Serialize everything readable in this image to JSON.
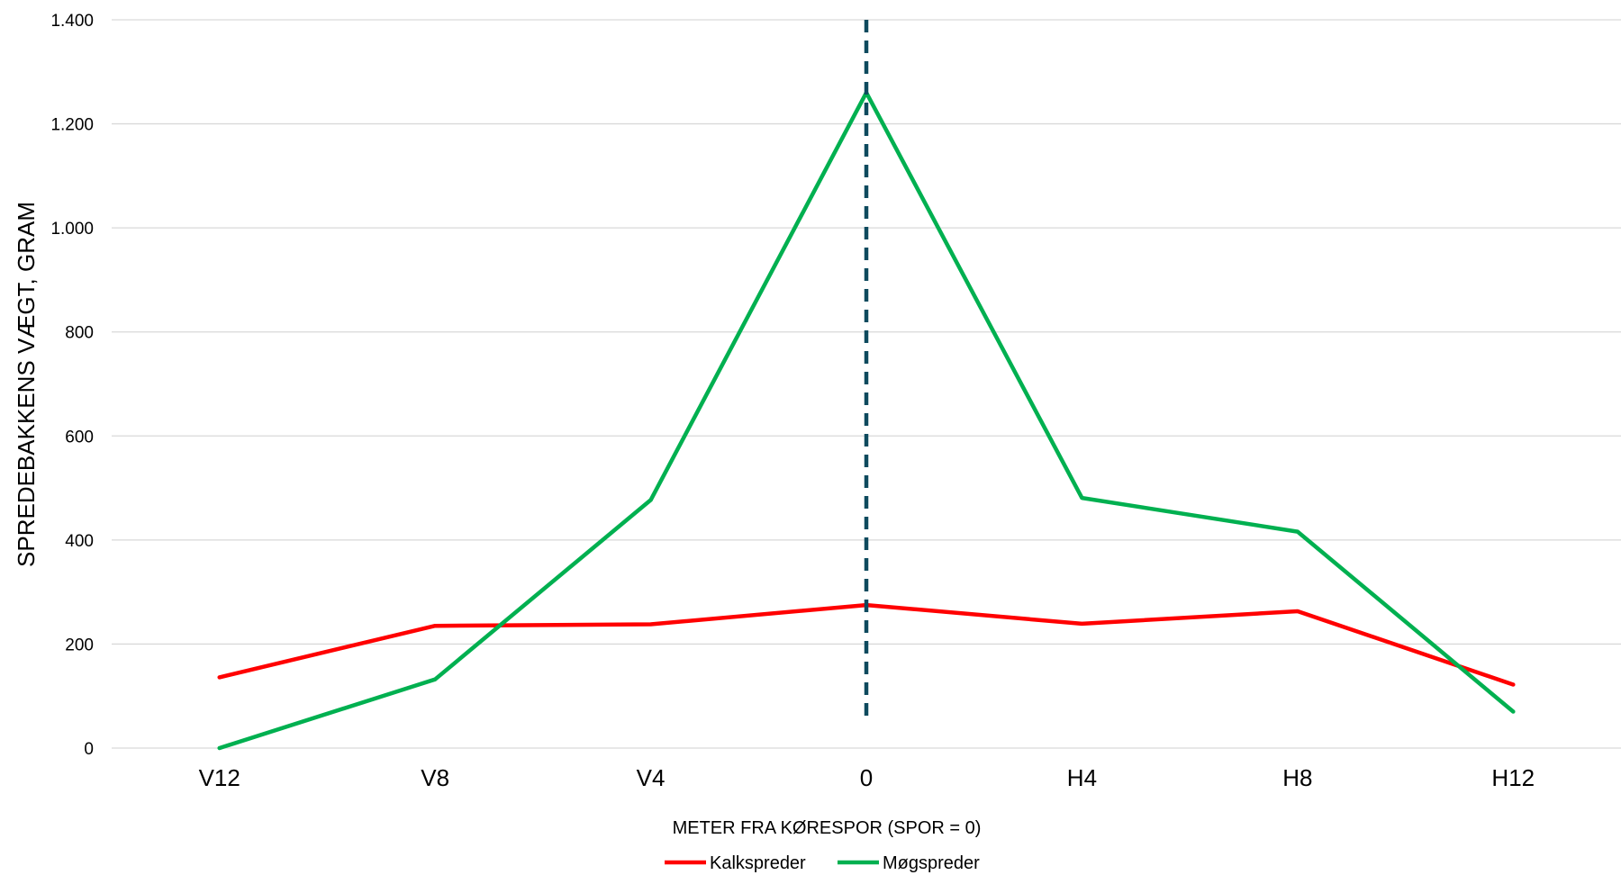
{
  "chart_data": {
    "type": "line",
    "categories": [
      "V12",
      "V8",
      "V4",
      "0",
      "H4",
      "H8",
      "H12"
    ],
    "series": [
      {
        "name": "Kalkspreder",
        "color": "#ff0000",
        "values": [
          136,
          235,
          238,
          275,
          239,
          263,
          122
        ]
      },
      {
        "name": "Møgspreder",
        "color": "#00b050",
        "values": [
          0,
          132,
          477,
          1260,
          481,
          416,
          70
        ]
      }
    ],
    "ylim": [
      0,
      1400
    ],
    "yticks": [
      0,
      200,
      400,
      600,
      800,
      1000,
      1200,
      1400
    ],
    "ytick_labels": [
      "0",
      "200",
      "400",
      "600",
      "800",
      "1.000",
      "1.200",
      "1.400"
    ],
    "xlabel": "METER FRA KØRESPOR (SPOR = 0)",
    "ylabel": "SPREDEBAKKENS VÆGT, GRAM",
    "grid": true,
    "legend_position": "bottom",
    "reference_line": {
      "category": "0",
      "style": "dashed",
      "color": "#0e4a5e"
    }
  }
}
